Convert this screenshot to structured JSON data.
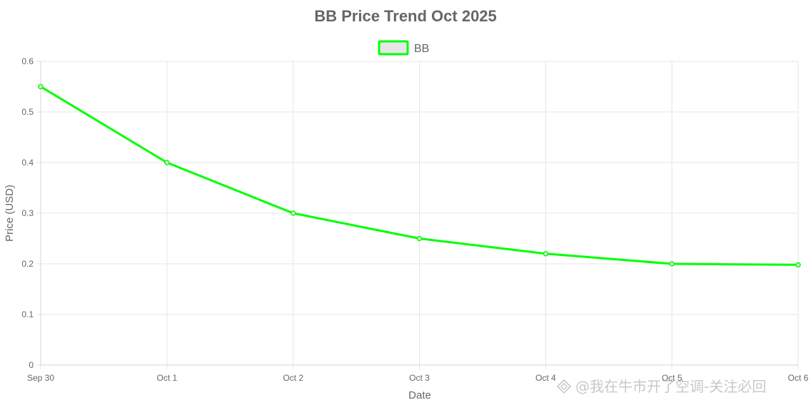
{
  "chart_data": {
    "type": "line",
    "title": "BB Price Trend Oct 2025",
    "xlabel": "Date",
    "ylabel": "Price (USD)",
    "categories": [
      "Sep 30",
      "Oct 1",
      "Oct 2",
      "Oct 3",
      "Oct 4",
      "Oct 5",
      "Oct 6"
    ],
    "series": [
      {
        "name": "BB",
        "values": [
          0.55,
          0.4,
          0.3,
          0.25,
          0.22,
          0.2,
          0.198
        ],
        "color": "#00ff00",
        "fill": "#e6e6e6"
      }
    ],
    "ylim": [
      0,
      0.6
    ],
    "yticks": [
      "0",
      "0.1",
      "0.2",
      "0.3",
      "0.4",
      "0.5",
      "0.6"
    ],
    "grid": true,
    "legend_position": "top-center",
    "grid_color": "#e5e5e5",
    "axis_color": "#d4d4d4"
  },
  "watermark": {
    "text": "@我在牛市开了空调-关注必回"
  }
}
